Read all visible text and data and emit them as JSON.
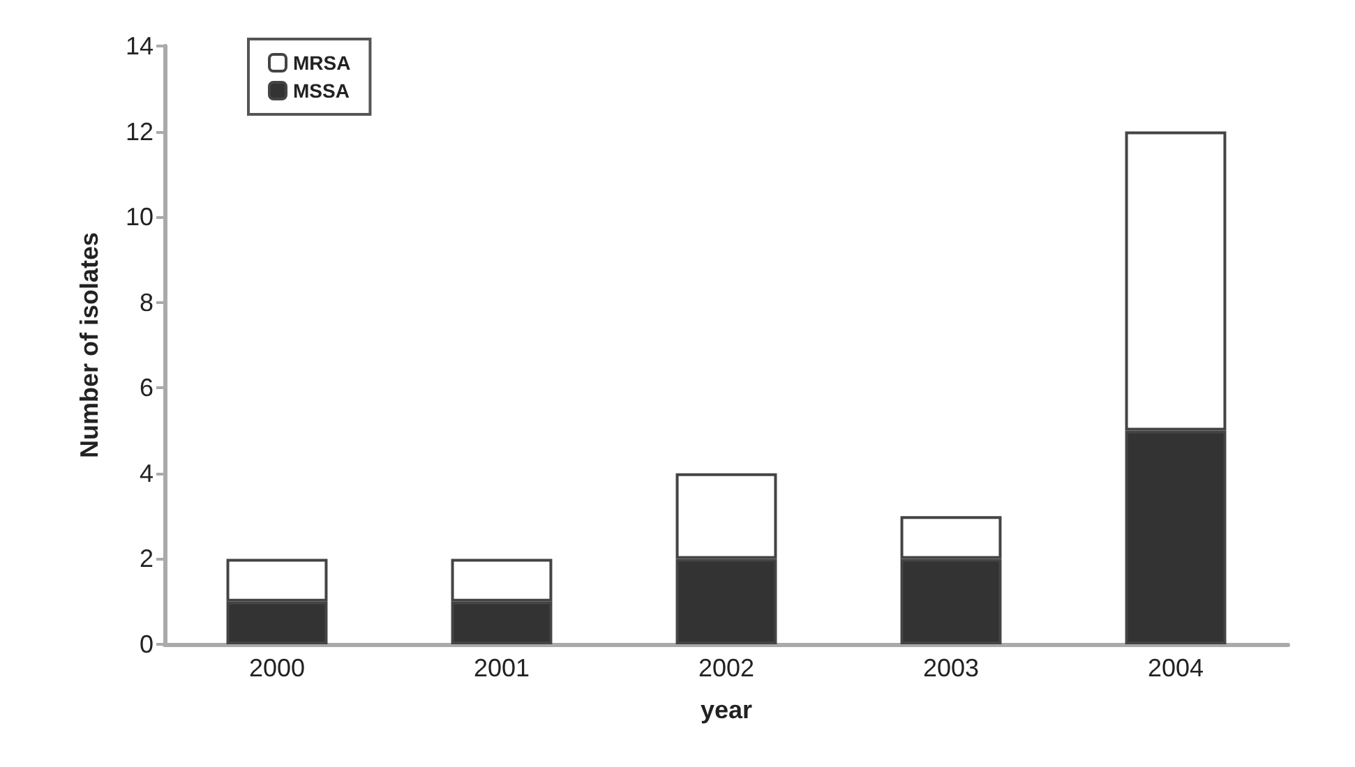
{
  "chart_data": {
    "type": "bar",
    "stacked": true,
    "xlabel": "year",
    "ylabel": "Number of isolates",
    "categories": [
      "2000",
      "2001",
      "2002",
      "2003",
      "2004"
    ],
    "series": [
      {
        "name": "MSSA",
        "color": "#333333",
        "values": [
          1,
          1,
          2,
          2,
          5
        ]
      },
      {
        "name": "MRSA",
        "color": "#ffffff",
        "values": [
          1,
          1,
          2,
          1,
          7
        ]
      }
    ],
    "ylim": [
      0,
      14
    ],
    "yticks": [
      0,
      2,
      4,
      6,
      8,
      10,
      12,
      14
    ],
    "grid": false,
    "legend": "top left"
  }
}
